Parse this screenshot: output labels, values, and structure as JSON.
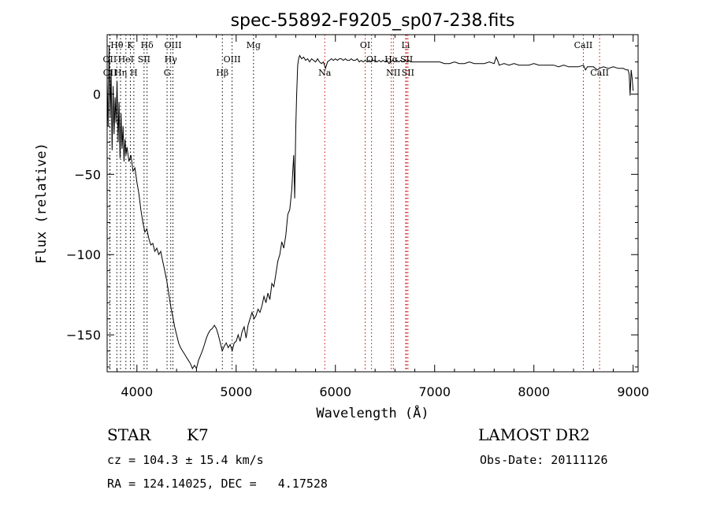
{
  "chart_data": {
    "type": "line",
    "title": "spec-55892-F9205_sp07-238.fits",
    "xlabel": "Wavelength (Å)",
    "ylabel": "Flux (relative)",
    "xlim": [
      3700,
      9050
    ],
    "ylim": [
      -173,
      37
    ],
    "xticks": [
      4000,
      5000,
      6000,
      7000,
      8000,
      9000
    ],
    "yticks": [
      0,
      -50,
      -100,
      -150
    ],
    "grid": false,
    "series": [
      {
        "points": [
          [
            3700,
            8
          ],
          [
            3710,
            -20
          ],
          [
            3720,
            30
          ],
          [
            3730,
            -15
          ],
          [
            3740,
            15
          ],
          [
            3750,
            -35
          ],
          [
            3760,
            5
          ],
          [
            3770,
            -25
          ],
          [
            3780,
            -2
          ],
          [
            3790,
            -18
          ],
          [
            3800,
            8
          ],
          [
            3810,
            -30
          ],
          [
            3820,
            -5
          ],
          [
            3830,
            -40
          ],
          [
            3840,
            -12
          ],
          [
            3850,
            -34
          ],
          [
            3860,
            -20
          ],
          [
            3870,
            -42
          ],
          [
            3880,
            -28
          ],
          [
            3890,
            -38
          ],
          [
            3900,
            -33
          ],
          [
            3920,
            -42
          ],
          [
            3940,
            -38
          ],
          [
            3960,
            -48
          ],
          [
            3980,
            -46
          ],
          [
            4000,
            -55
          ],
          [
            4020,
            -62
          ],
          [
            4040,
            -72
          ],
          [
            4060,
            -80
          ],
          [
            4080,
            -86
          ],
          [
            4100,
            -84
          ],
          [
            4120,
            -90
          ],
          [
            4140,
            -94
          ],
          [
            4160,
            -93
          ],
          [
            4180,
            -98
          ],
          [
            4200,
            -96
          ],
          [
            4220,
            -100
          ],
          [
            4240,
            -98
          ],
          [
            4260,
            -104
          ],
          [
            4280,
            -110
          ],
          [
            4300,
            -116
          ],
          [
            4320,
            -124
          ],
          [
            4340,
            -132
          ],
          [
            4360,
            -138
          ],
          [
            4380,
            -145
          ],
          [
            4400,
            -150
          ],
          [
            4420,
            -155
          ],
          [
            4440,
            -158
          ],
          [
            4460,
            -160
          ],
          [
            4480,
            -162
          ],
          [
            4500,
            -164
          ],
          [
            4520,
            -166
          ],
          [
            4540,
            -168
          ],
          [
            4560,
            -171
          ],
          [
            4580,
            -169
          ],
          [
            4600,
            -171
          ],
          [
            4620,
            -166
          ],
          [
            4640,
            -163
          ],
          [
            4660,
            -160
          ],
          [
            4680,
            -156
          ],
          [
            4700,
            -152
          ],
          [
            4720,
            -149
          ],
          [
            4740,
            -147
          ],
          [
            4760,
            -146
          ],
          [
            4780,
            -144
          ],
          [
            4800,
            -146
          ],
          [
            4820,
            -150
          ],
          [
            4840,
            -155
          ],
          [
            4860,
            -160
          ],
          [
            4880,
            -157
          ],
          [
            4900,
            -155
          ],
          [
            4920,
            -158
          ],
          [
            4940,
            -156
          ],
          [
            4960,
            -160
          ],
          [
            4980,
            -155
          ],
          [
            5000,
            -154
          ],
          [
            5020,
            -150
          ],
          [
            5040,
            -154
          ],
          [
            5060,
            -148
          ],
          [
            5080,
            -145
          ],
          [
            5100,
            -152
          ],
          [
            5120,
            -144
          ],
          [
            5140,
            -140
          ],
          [
            5160,
            -136
          ],
          [
            5180,
            -140
          ],
          [
            5200,
            -138
          ],
          [
            5220,
            -134
          ],
          [
            5240,
            -136
          ],
          [
            5260,
            -132
          ],
          [
            5280,
            -126
          ],
          [
            5300,
            -130
          ],
          [
            5320,
            -124
          ],
          [
            5340,
            -128
          ],
          [
            5360,
            -118
          ],
          [
            5380,
            -120
          ],
          [
            5400,
            -112
          ],
          [
            5420,
            -104
          ],
          [
            5440,
            -100
          ],
          [
            5460,
            -92
          ],
          [
            5480,
            -96
          ],
          [
            5500,
            -88
          ],
          [
            5520,
            -75
          ],
          [
            5540,
            -72
          ],
          [
            5560,
            -60
          ],
          [
            5580,
            -38
          ],
          [
            5590,
            -65
          ],
          [
            5600,
            -22
          ],
          [
            5610,
            0
          ],
          [
            5620,
            18
          ],
          [
            5630,
            22
          ],
          [
            5640,
            24
          ],
          [
            5660,
            22
          ],
          [
            5680,
            23
          ],
          [
            5700,
            21
          ],
          [
            5720,
            22
          ],
          [
            5740,
            20
          ],
          [
            5760,
            22
          ],
          [
            5780,
            21
          ],
          [
            5800,
            20
          ],
          [
            5820,
            22
          ],
          [
            5840,
            20
          ],
          [
            5860,
            19
          ],
          [
            5880,
            20
          ],
          [
            5900,
            16
          ],
          [
            5920,
            20
          ],
          [
            5940,
            21
          ],
          [
            5960,
            22
          ],
          [
            5980,
            21
          ],
          [
            6000,
            22
          ],
          [
            6020,
            21
          ],
          [
            6040,
            22
          ],
          [
            6060,
            22
          ],
          [
            6080,
            21
          ],
          [
            6100,
            22
          ],
          [
            6120,
            21
          ],
          [
            6140,
            21
          ],
          [
            6160,
            22
          ],
          [
            6180,
            21
          ],
          [
            6200,
            21
          ],
          [
            6220,
            22
          ],
          [
            6240,
            20
          ],
          [
            6260,
            21
          ],
          [
            6280,
            20
          ],
          [
            6300,
            21
          ],
          [
            6320,
            20
          ],
          [
            6340,
            21
          ],
          [
            6360,
            20
          ],
          [
            6380,
            21
          ],
          [
            6400,
            21
          ],
          [
            6420,
            20
          ],
          [
            6440,
            21
          ],
          [
            6460,
            20
          ],
          [
            6480,
            21
          ],
          [
            6500,
            20
          ],
          [
            6520,
            21
          ],
          [
            6540,
            19
          ],
          [
            6560,
            20
          ],
          [
            6580,
            21
          ],
          [
            6600,
            20
          ],
          [
            6620,
            21
          ],
          [
            6640,
            20
          ],
          [
            6660,
            21
          ],
          [
            6680,
            20
          ],
          [
            6700,
            21
          ],
          [
            6720,
            20
          ],
          [
            6740,
            21
          ],
          [
            6760,
            20
          ],
          [
            6800,
            20
          ],
          [
            6850,
            20
          ],
          [
            6900,
            20
          ],
          [
            6950,
            20
          ],
          [
            7000,
            20
          ],
          [
            7050,
            20
          ],
          [
            7100,
            19
          ],
          [
            7150,
            19
          ],
          [
            7200,
            20
          ],
          [
            7250,
            19
          ],
          [
            7300,
            19
          ],
          [
            7350,
            20
          ],
          [
            7400,
            19
          ],
          [
            7450,
            19
          ],
          [
            7500,
            19
          ],
          [
            7550,
            20
          ],
          [
            7600,
            19
          ],
          [
            7620,
            23
          ],
          [
            7640,
            20
          ],
          [
            7650,
            18
          ],
          [
            7700,
            19
          ],
          [
            7750,
            18
          ],
          [
            7800,
            19
          ],
          [
            7850,
            18
          ],
          [
            7900,
            18
          ],
          [
            7950,
            18
          ],
          [
            8000,
            19
          ],
          [
            8050,
            18
          ],
          [
            8100,
            18
          ],
          [
            8150,
            18
          ],
          [
            8200,
            18
          ],
          [
            8250,
            17
          ],
          [
            8300,
            18
          ],
          [
            8350,
            17
          ],
          [
            8400,
            17
          ],
          [
            8450,
            17
          ],
          [
            8500,
            18
          ],
          [
            8520,
            15
          ],
          [
            8540,
            17
          ],
          [
            8600,
            17
          ],
          [
            8640,
            15
          ],
          [
            8660,
            16
          ],
          [
            8700,
            17
          ],
          [
            8750,
            16
          ],
          [
            8800,
            17
          ],
          [
            8850,
            16
          ],
          [
            8900,
            16
          ],
          [
            8930,
            15
          ],
          [
            8950,
            15
          ],
          [
            8960,
            12
          ],
          [
            8970,
            -1
          ],
          [
            8980,
            15
          ],
          [
            8990,
            10
          ],
          [
            9000,
            2
          ]
        ]
      }
    ],
    "line_markers": [
      {
        "label": "Hθ",
        "x": 3798,
        "row": 0
      },
      {
        "label": "K",
        "x": 3934,
        "row": 0
      },
      {
        "label": "Hδ",
        "x": 4102,
        "row": 0
      },
      {
        "label": "OIII",
        "x": 4363,
        "row": 0
      },
      {
        "label": "Mg",
        "x": 5175,
        "row": 0
      },
      {
        "label": "OI",
        "x": 6300,
        "row": 0
      },
      {
        "label": "Li",
        "x": 6708,
        "row": 0
      },
      {
        "label": "CaII",
        "x": 8498,
        "row": 0
      },
      {
        "label": "OII",
        "x": 3727,
        "row": 1
      },
      {
        "label": "HeI",
        "x": 3889,
        "row": 1
      },
      {
        "label": "SII",
        "x": 4072,
        "row": 1
      },
      {
        "label": "Hγ",
        "x": 4341,
        "row": 1
      },
      {
        "label": "OIII",
        "x": 4959,
        "row": 1
      },
      {
        "label": "OI",
        "x": 6364,
        "row": 1
      },
      {
        "label": "Hα",
        "x": 6563,
        "row": 1
      },
      {
        "label": "SII",
        "x": 6717,
        "row": 1
      },
      {
        "label": "OII",
        "x": 3729,
        "row": 2
      },
      {
        "label": "Hη",
        "x": 3835,
        "row": 2
      },
      {
        "label": "H",
        "x": 3969,
        "row": 2
      },
      {
        "label": "G",
        "x": 4304,
        "row": 2
      },
      {
        "label": "Hβ",
        "x": 4861,
        "row": 2
      },
      {
        "label": "Na",
        "x": 5893,
        "row": 2
      },
      {
        "label": "NII",
        "x": 6584,
        "row": 2
      },
      {
        "label": "SII",
        "x": 6731,
        "row": 2
      },
      {
        "label": "CaII",
        "x": 8662,
        "row": 2
      }
    ],
    "marker_colors": {
      "red": "#cc0000",
      "black": "#000000"
    }
  },
  "info": {
    "object_class": "STAR",
    "subclass": "K7",
    "survey": "LAMOST DR2",
    "cz": "cz = 104.3 ± 15.4 km/s",
    "obs_date": "Obs-Date: 20111126",
    "coords": "RA = 124.14025, DEC =   4.17528"
  }
}
